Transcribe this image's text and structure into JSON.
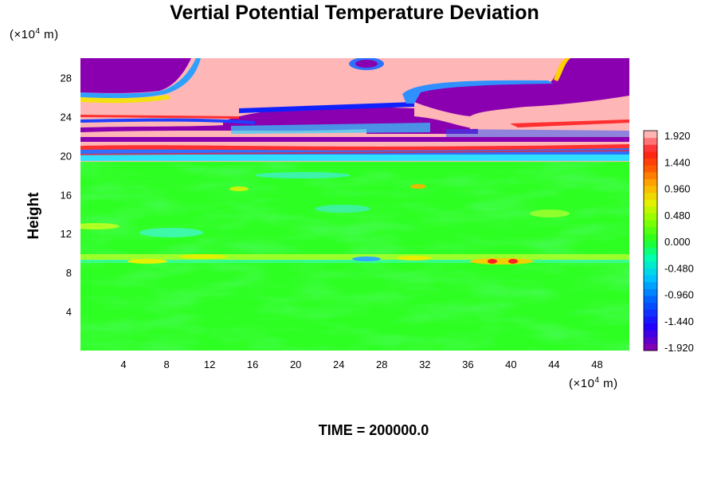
{
  "chart_data": {
    "type": "heatmap",
    "title": "Vertial Potential Temperature Deviation",
    "ylabel": "Height",
    "xlabel": "",
    "x_unit": {
      "prefix": "(×10",
      "exp": "4",
      "suffix": " m)"
    },
    "y_unit": {
      "prefix": "(×10",
      "exp": "4",
      "suffix": " m)"
    },
    "xlim": [
      0,
      51
    ],
    "ylim": [
      0,
      30
    ],
    "x_ticks": [
      4,
      8,
      12,
      16,
      20,
      24,
      28,
      32,
      36,
      40,
      44,
      48
    ],
    "y_ticks": [
      4,
      8,
      12,
      16,
      20,
      24,
      28
    ],
    "colorbar": {
      "labels": [
        "1.920",
        "1.440",
        "0.960",
        "0.480",
        "0.000",
        "-0.480",
        "-0.960",
        "-1.440",
        "-1.920"
      ],
      "values": [
        1.92,
        1.44,
        0.96,
        0.48,
        0.0,
        -0.48,
        -0.96,
        -1.44,
        -1.92
      ],
      "colors": [
        "#ffb3b3",
        "#ff1a1a",
        "#ff8000",
        "#e6e600",
        "#4dff00",
        "#00ffcc",
        "#0080ff",
        "#0000ff",
        "#8000b3"
      ]
    },
    "footer": "TIME = 200000.0",
    "field_description_by_height": [
      {
        "height_range": [
          0,
          9
        ],
        "value": 0.0
      },
      {
        "height_range": [
          9,
          9.5
        ],
        "value": 0.5
      },
      {
        "height_range": [
          9.5,
          20
        ],
        "value": 0.0
      },
      {
        "height_range": [
          20,
          22
        ],
        "value": "alternating bands ±1.9"
      },
      {
        "height_range": [
          22,
          30
        ],
        "value": "large patches ±1.9"
      }
    ]
  }
}
